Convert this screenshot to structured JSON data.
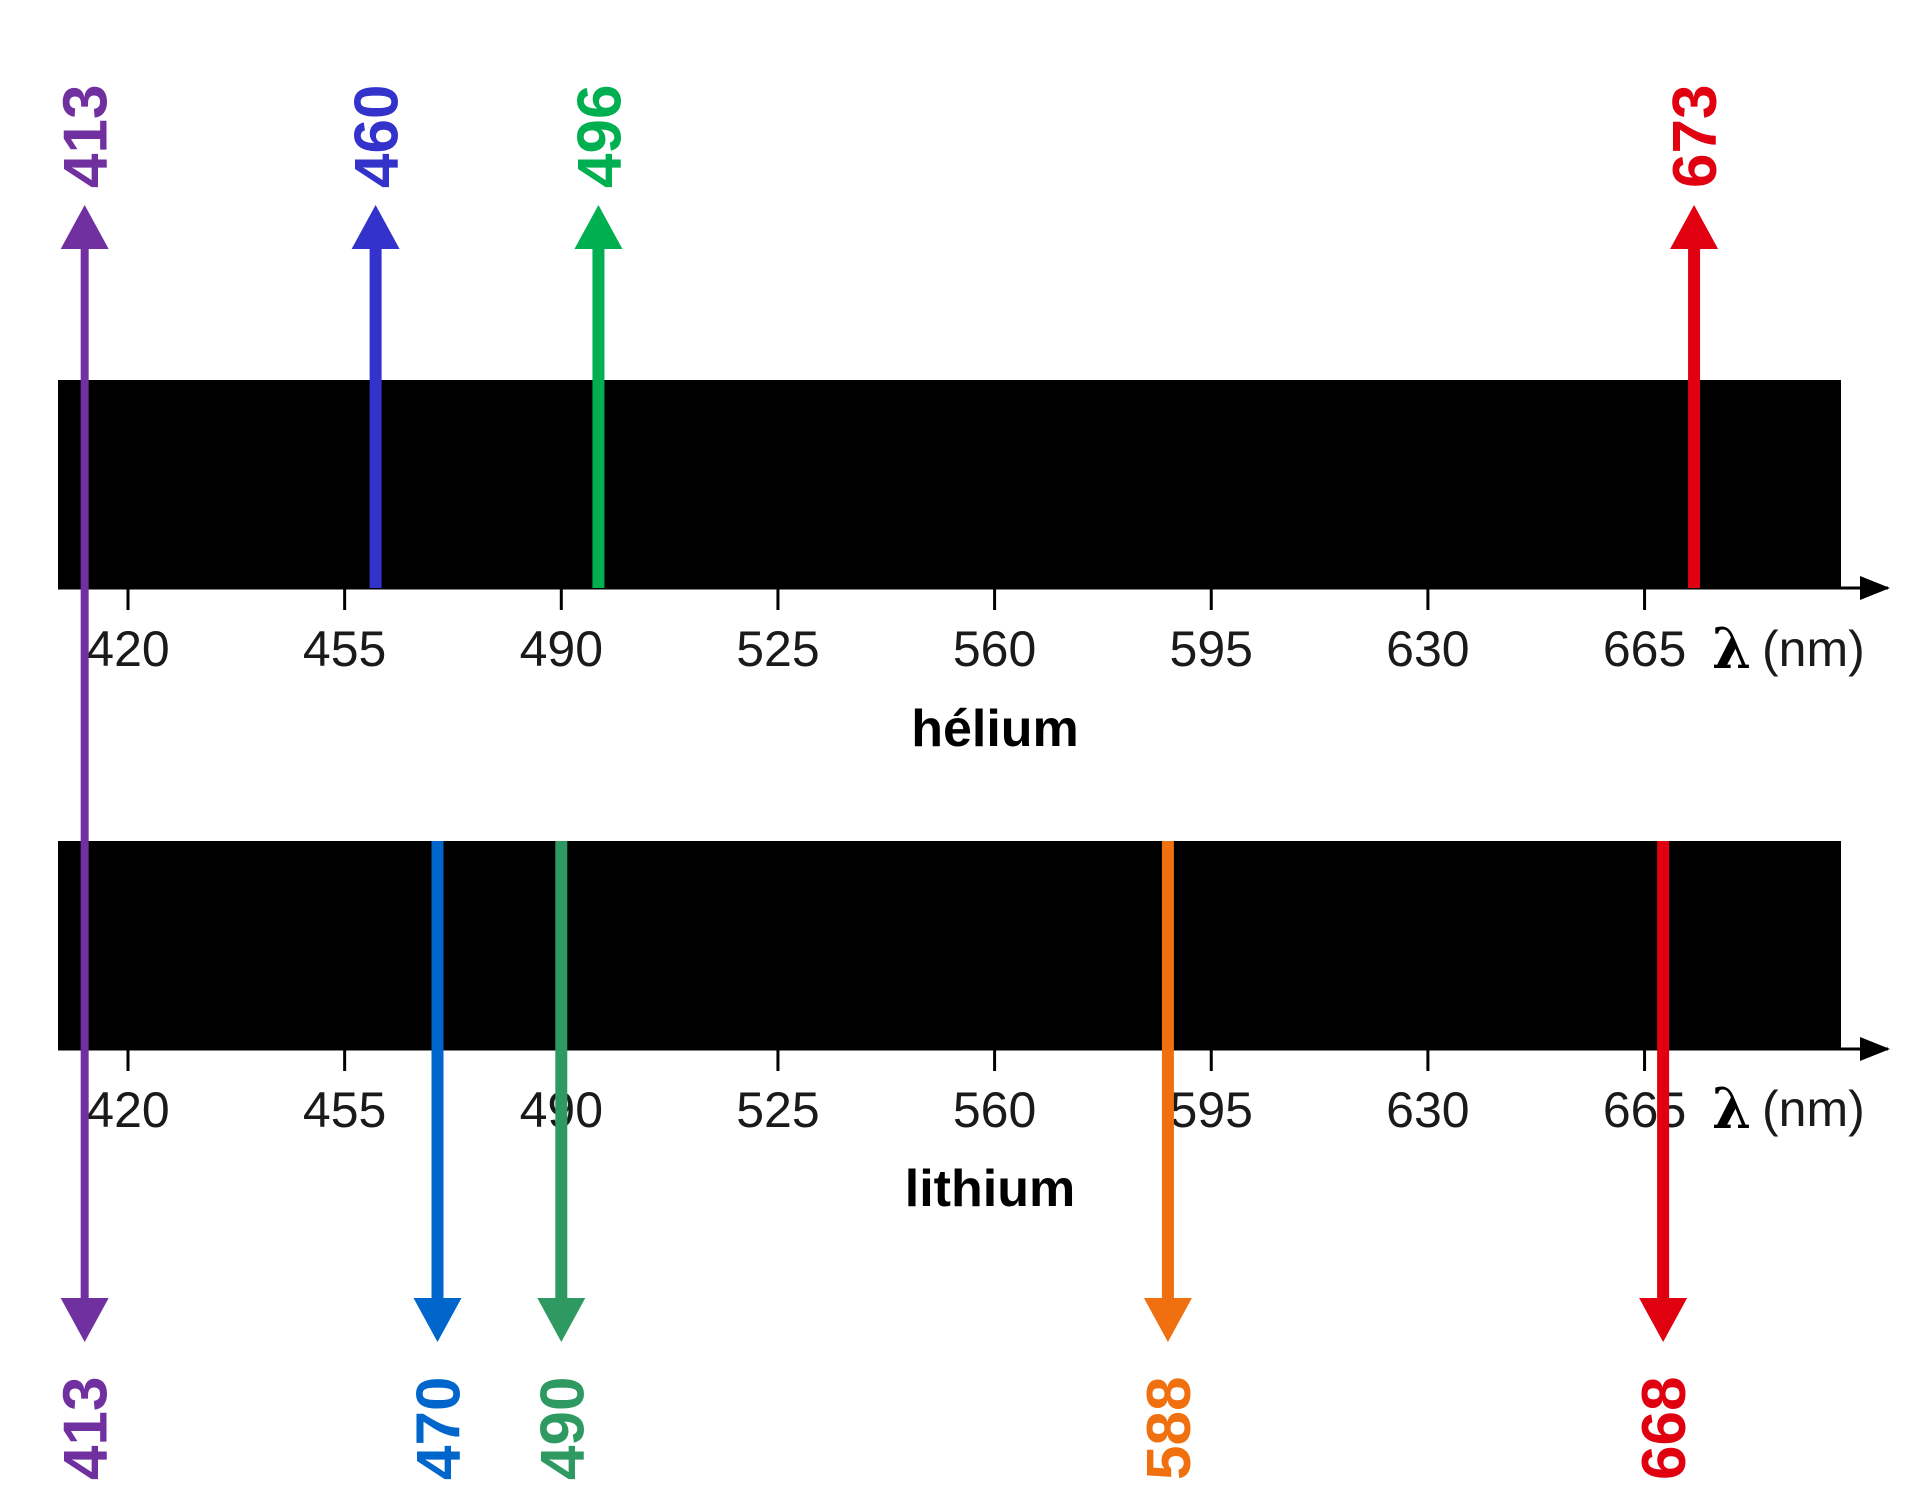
{
  "x_ticks": [
    "420",
    "455",
    "490",
    "525",
    "560",
    "595",
    "630",
    "665"
  ],
  "axis_unit": "(nm)",
  "axis_symbol": "λ",
  "colors": {
    "violet": "#7030a0",
    "blue_dark": "#3333cc",
    "green": "#00b050",
    "red": "#e00010",
    "blue": "#0066cc",
    "teal_green": "#2e9a62",
    "orange": "#f07010",
    "band": "#000000"
  },
  "spectra": [
    {
      "name": "hélium",
      "lines": [
        {
          "nm": 460,
          "label": "460",
          "color": "#3333cc"
        },
        {
          "nm": 496,
          "label": "496",
          "color": "#00b050"
        },
        {
          "nm": 673,
          "label": "673",
          "color": "#e00010"
        }
      ]
    },
    {
      "name": "lithium",
      "lines": [
        {
          "nm": 470,
          "label": "470",
          "color": "#0066cc"
        },
        {
          "nm": 490,
          "label": "490",
          "color": "#2e9a62"
        },
        {
          "nm": 588,
          "label": "588",
          "color": "#f07010"
        },
        {
          "nm": 668,
          "label": "668",
          "color": "#e00010"
        }
      ]
    }
  ],
  "shared_line": {
    "nm": 413,
    "label_top": "413",
    "label_bottom": "413",
    "color": "#7030a0"
  }
}
